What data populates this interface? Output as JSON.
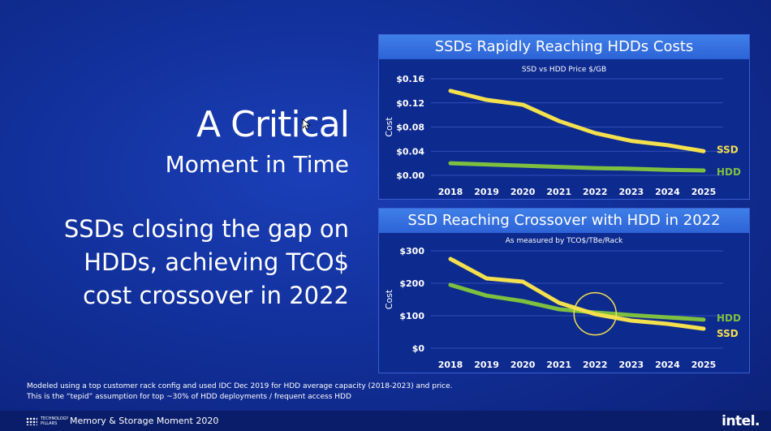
{
  "headline": {
    "line1": "A Critical",
    "line2": "Moment in Time"
  },
  "body": {
    "line1": "SSDs closing the gap on",
    "line2": "HDDs, achieving TCO$",
    "line3": "cost crossover in 2022"
  },
  "chart_data": [
    {
      "type": "line",
      "title": "SSDs Rapidly Reaching HDDs Costs",
      "subtitle": "SSD vs HDD Price $/GB",
      "ylabel": "Cost",
      "x": [
        "2018",
        "2019",
        "2020",
        "2021",
        "2022",
        "2023",
        "2024",
        "2025"
      ],
      "ylim": [
        0,
        0.16
      ],
      "yticks": [
        "$0.00",
        "$0.04",
        "$0.08",
        "$0.12",
        "$0.16"
      ],
      "ytick_values": [
        0,
        0.04,
        0.08,
        0.12,
        0.16
      ],
      "series": [
        {
          "name": "SSD",
          "color": "#f4e04d",
          "values": [
            0.14,
            0.125,
            0.117,
            0.09,
            0.07,
            0.057,
            0.05,
            0.04
          ]
        },
        {
          "name": "HDD",
          "color": "#7fbf3f",
          "values": [
            0.02,
            0.018,
            0.016,
            0.014,
            0.012,
            0.011,
            0.009,
            0.008
          ]
        }
      ]
    },
    {
      "type": "line",
      "title": "SSD Reaching Crossover with HDD in 2022",
      "subtitle": "As measured by TCO$/TBe/Rack",
      "ylabel": "Cost",
      "x": [
        "2018",
        "2019",
        "2020",
        "2021",
        "2022",
        "2023",
        "2024",
        "2025"
      ],
      "ylim": [
        0,
        300
      ],
      "yticks": [
        "$0",
        "$100",
        "$200",
        "$300"
      ],
      "ytick_values": [
        0,
        100,
        200,
        300
      ],
      "crossover_year": "2022",
      "series": [
        {
          "name": "SSD",
          "color": "#f4e04d",
          "values": [
            275,
            215,
            205,
            140,
            105,
            85,
            75,
            60
          ]
        },
        {
          "name": "HDD",
          "color": "#7fbf3f",
          "values": [
            195,
            162,
            145,
            120,
            110,
            102,
            95,
            88
          ]
        }
      ]
    }
  ],
  "footnote": {
    "line1": "Modeled using a top customer rack config and used IDC Dec 2019 for HDD average capacity (2018-2023) and price.",
    "line2": "This is the “tepid” assumption for top ~30% of HDD deployments / frequent access HDD"
  },
  "footer": {
    "logo_line1": "TECHNOLOGY",
    "logo_line2": "PILLARS",
    "event": "Memory & Storage Moment 2020",
    "brand": "intel."
  }
}
